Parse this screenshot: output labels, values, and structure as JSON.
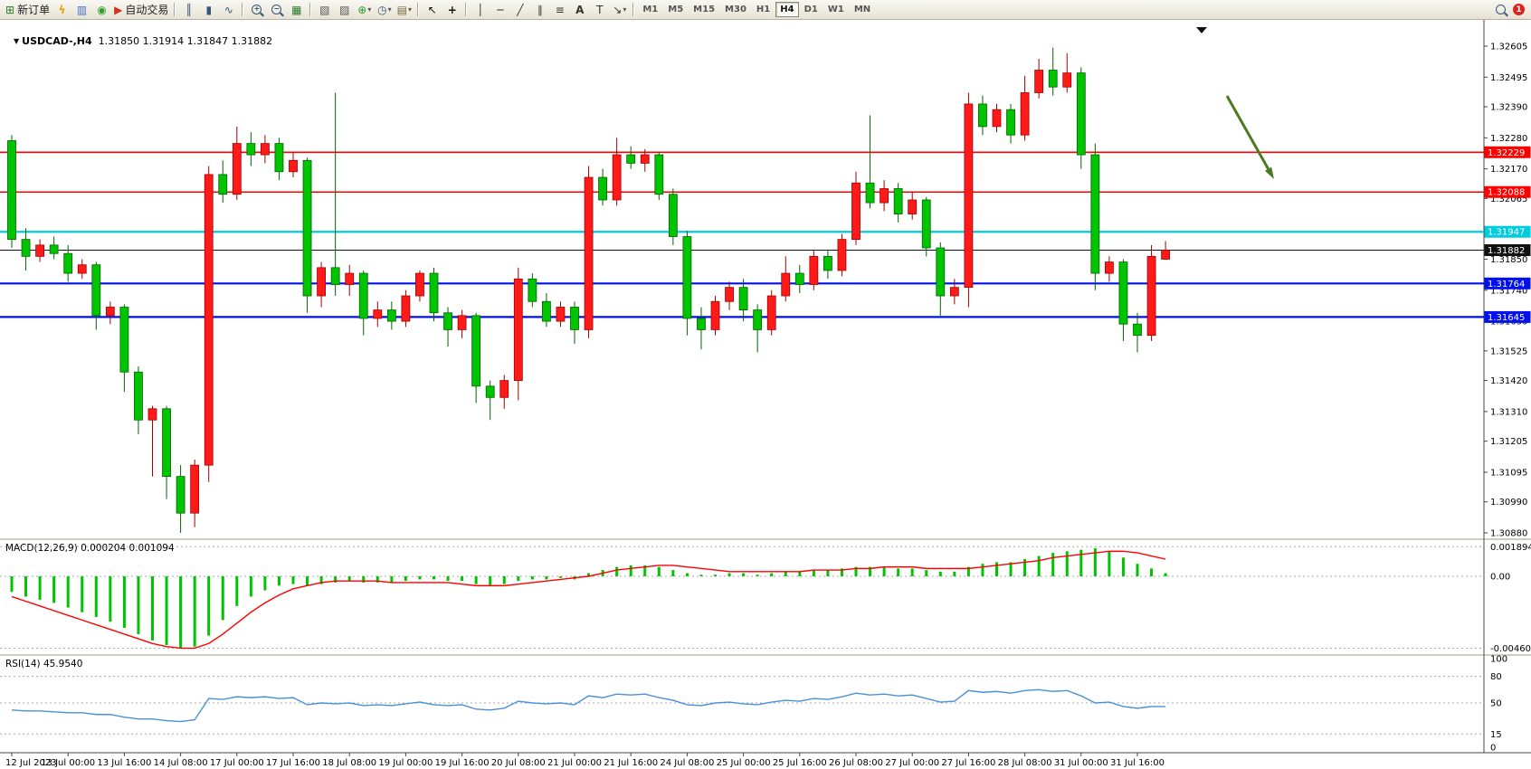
{
  "toolbar": {
    "new_order_label": "新订单",
    "auto_trading_label": "自动交易",
    "timeframes": [
      "M1",
      "M5",
      "M15",
      "M30",
      "H1",
      "H4",
      "D1",
      "W1",
      "MN"
    ],
    "active_timeframe": "H4",
    "notification_count": "1"
  },
  "icons": {
    "new_order": "⊞",
    "lightning": "ϟ",
    "profile": "▥",
    "sound": "◉",
    "auto_trading": "▶",
    "bar_chart": "║",
    "candle_chart": "▮",
    "line_chart": "∿",
    "tile_windows": "▦",
    "cascade_windows": "▧",
    "arrange_windows": "▨",
    "add_indicator": "⊕",
    "clock": "◷",
    "template": "▤",
    "cursor": "↖",
    "crosshair": "+",
    "vline": "│",
    "hline": "─",
    "trendline": "╱",
    "channel": "∥",
    "fibonacci": "≡",
    "text_tool": "A",
    "label_tool": "T",
    "arrow_tool": "↘",
    "dropdown": "▾",
    "expand_triangle": "▼",
    "zoom_in_sign": "+",
    "zoom_out_sign": "−"
  },
  "header": {
    "symbol_label": "USDCAD-,H4",
    "quote_line": "1.31850 1.31914 1.31847 1.31882"
  },
  "macd_header": "MACD(12,26,9) 0.000204 0.001094",
  "rsi_header": "RSI(14) 45.9540",
  "chart_data": {
    "type": "candlestick",
    "symbol": "USDCAD-",
    "timeframe": "H4",
    "current_ohlc": {
      "open": 1.3185,
      "high": 1.31914,
      "low": 1.31847,
      "close": 1.31882
    },
    "bull_color": "#ff1a1a",
    "bear_color": "#00c400",
    "price_axis": {
      "max": 1.32605,
      "min": 1.3088,
      "ticks": [
        1.32605,
        1.32495,
        1.3239,
        1.3228,
        1.3217,
        1.32065,
        1.31955,
        1.3185,
        1.3174,
        1.3163,
        1.31525,
        1.3142,
        1.3131,
        1.31205,
        1.31095,
        1.3099,
        1.3088
      ]
    },
    "horizontal_lines": [
      {
        "price": 1.32229,
        "color": "#ff0000",
        "width": 1.6
      },
      {
        "price": 1.32088,
        "color": "#ff0000",
        "width": 1.6
      },
      {
        "price": 1.31947,
        "color": "#00ccdd",
        "width": 2.2
      },
      {
        "price": 1.31764,
        "color": "#0010ee",
        "width": 2.2
      },
      {
        "price": 1.31645,
        "color": "#0010ee",
        "width": 2.2
      }
    ],
    "current_price": {
      "value": 1.31882,
      "color": "#111111"
    },
    "annotation_arrow": {
      "color": "#4c7a1f"
    },
    "candles": [
      [
        1.3227,
        1.3229,
        1.3189,
        1.3192
      ],
      [
        1.3192,
        1.3196,
        1.3181,
        1.3186
      ],
      [
        1.3186,
        1.3192,
        1.3184,
        1.319
      ],
      [
        1.319,
        1.3193,
        1.3185,
        1.3187
      ],
      [
        1.3187,
        1.319,
        1.3177,
        1.318
      ],
      [
        1.318,
        1.3185,
        1.3178,
        1.3183
      ],
      [
        1.3183,
        1.3184,
        1.316,
        1.3165
      ],
      [
        1.3165,
        1.317,
        1.3162,
        1.3168
      ],
      [
        1.3168,
        1.3169,
        1.3138,
        1.3145
      ],
      [
        1.3145,
        1.3147,
        1.3123,
        1.3128
      ],
      [
        1.3128,
        1.3133,
        1.3108,
        1.3132
      ],
      [
        1.3132,
        1.3133,
        1.31,
        1.3108
      ],
      [
        1.3108,
        1.3112,
        1.3088,
        1.3095
      ],
      [
        1.3095,
        1.3114,
        1.309,
        1.3112
      ],
      [
        1.3112,
        1.3218,
        1.3106,
        1.3215
      ],
      [
        1.3215,
        1.322,
        1.3205,
        1.3208
      ],
      [
        1.3208,
        1.3232,
        1.3206,
        1.3226
      ],
      [
        1.3226,
        1.323,
        1.3218,
        1.3222
      ],
      [
        1.3222,
        1.3229,
        1.3219,
        1.3226
      ],
      [
        1.3226,
        1.3228,
        1.3213,
        1.3216
      ],
      [
        1.3216,
        1.3223,
        1.3214,
        1.322
      ],
      [
        1.322,
        1.3221,
        1.3166,
        1.3172
      ],
      [
        1.3172,
        1.3184,
        1.3168,
        1.3182
      ],
      [
        1.3182,
        1.3244,
        1.3172,
        1.3176
      ],
      [
        1.3176,
        1.3183,
        1.3172,
        1.318
      ],
      [
        1.318,
        1.3181,
        1.3158,
        1.3164
      ],
      [
        1.3164,
        1.317,
        1.3161,
        1.3167
      ],
      [
        1.3167,
        1.317,
        1.316,
        1.3163
      ],
      [
        1.3163,
        1.3174,
        1.3161,
        1.3172
      ],
      [
        1.3172,
        1.3181,
        1.317,
        1.318
      ],
      [
        1.318,
        1.3182,
        1.3163,
        1.3166
      ],
      [
        1.3166,
        1.3168,
        1.3154,
        1.316
      ],
      [
        1.316,
        1.3167,
        1.3157,
        1.3165
      ],
      [
        1.3165,
        1.3166,
        1.3134,
        1.314
      ],
      [
        1.314,
        1.3142,
        1.3128,
        1.3136
      ],
      [
        1.3136,
        1.3144,
        1.3132,
        1.3142
      ],
      [
        1.3142,
        1.3182,
        1.3135,
        1.3178
      ],
      [
        1.3178,
        1.318,
        1.3168,
        1.317
      ],
      [
        1.317,
        1.3173,
        1.3161,
        1.3163
      ],
      [
        1.3163,
        1.317,
        1.3161,
        1.3168
      ],
      [
        1.3168,
        1.317,
        1.3155,
        1.316
      ],
      [
        1.316,
        1.3218,
        1.3157,
        1.3214
      ],
      [
        1.3214,
        1.3217,
        1.3204,
        1.3206
      ],
      [
        1.3206,
        1.3228,
        1.3204,
        1.3222
      ],
      [
        1.3222,
        1.3225,
        1.3217,
        1.3219
      ],
      [
        1.3219,
        1.3224,
        1.3216,
        1.3222
      ],
      [
        1.3222,
        1.3223,
        1.3206,
        1.3208
      ],
      [
        1.3208,
        1.321,
        1.319,
        1.3193
      ],
      [
        1.3193,
        1.3195,
        1.3158,
        1.3164
      ],
      [
        1.3164,
        1.3168,
        1.3153,
        1.316
      ],
      [
        1.316,
        1.3172,
        1.3158,
        1.317
      ],
      [
        1.317,
        1.3177,
        1.3167,
        1.3175
      ],
      [
        1.3175,
        1.3178,
        1.3163,
        1.3167
      ],
      [
        1.3167,
        1.3169,
        1.3152,
        1.316
      ],
      [
        1.316,
        1.3174,
        1.3158,
        1.3172
      ],
      [
        1.3172,
        1.3186,
        1.317,
        1.318
      ],
      [
        1.318,
        1.3183,
        1.3173,
        1.3176
      ],
      [
        1.3176,
        1.3188,
        1.3174,
        1.3186
      ],
      [
        1.3186,
        1.3188,
        1.3178,
        1.3181
      ],
      [
        1.3181,
        1.3194,
        1.3179,
        1.3192
      ],
      [
        1.3192,
        1.3216,
        1.319,
        1.3212
      ],
      [
        1.3212,
        1.3236,
        1.3203,
        1.3205
      ],
      [
        1.3205,
        1.3213,
        1.3202,
        1.321
      ],
      [
        1.321,
        1.3212,
        1.3198,
        1.3201
      ],
      [
        1.3201,
        1.3209,
        1.3199,
        1.3206
      ],
      [
        1.3206,
        1.3207,
        1.3186,
        1.3189
      ],
      [
        1.3189,
        1.3191,
        1.3165,
        1.3172
      ],
      [
        1.3172,
        1.3178,
        1.3169,
        1.3175
      ],
      [
        1.3175,
        1.3244,
        1.3168,
        1.324
      ],
      [
        1.324,
        1.3243,
        1.3229,
        1.3232
      ],
      [
        1.3232,
        1.324,
        1.323,
        1.3238
      ],
      [
        1.3238,
        1.324,
        1.3226,
        1.3229
      ],
      [
        1.3229,
        1.325,
        1.3227,
        1.3244
      ],
      [
        1.3244,
        1.3256,
        1.3242,
        1.3252
      ],
      [
        1.3252,
        1.326,
        1.3243,
        1.3246
      ],
      [
        1.3246,
        1.3258,
        1.3244,
        1.3251
      ],
      [
        1.3251,
        1.3253,
        1.3217,
        1.3222
      ],
      [
        1.3222,
        1.3226,
        1.3174,
        1.318
      ],
      [
        1.318,
        1.3186,
        1.3177,
        1.3184
      ],
      [
        1.3184,
        1.3185,
        1.3156,
        1.3162
      ],
      [
        1.3162,
        1.3166,
        1.3152,
        1.3158
      ],
      [
        1.3158,
        1.319,
        1.3156,
        1.3186
      ],
      [
        1.3185,
        1.31914,
        1.31847,
        1.31882
      ]
    ],
    "time_labels": [
      "12 Jul 2023",
      "13 Jul 00:00",
      "13 Jul 16:00",
      "14 Jul 08:00",
      "17 Jul 00:00",
      "17 Jul 16:00",
      "18 Jul 08:00",
      "19 Jul 00:00",
      "19 Jul 16:00",
      "20 Jul 08:00",
      "21 Jul 00:00",
      "21 Jul 16:00",
      "24 Jul 08:00",
      "25 Jul 00:00",
      "25 Jul 16:00",
      "26 Jul 08:00",
      "27 Jul 00:00",
      "27 Jul 16:00",
      "28 Jul 08:00",
      "31 Jul 00:00",
      "31 Jul 16:00"
    ],
    "macd": {
      "name": "MACD(12,26,9)",
      "main_value": "0.000204",
      "signal_value": "0.001094",
      "axis_labels": [
        "0.001894",
        "0.00",
        "-0.004603"
      ],
      "axis_values": [
        0.001894,
        0,
        -0.004603
      ],
      "hist_color": "#00c400",
      "signal_color": "#ff0000",
      "hist": [
        -0.001,
        -0.0013,
        -0.0015,
        -0.0017,
        -0.002,
        -0.0023,
        -0.0026,
        -0.0029,
        -0.0033,
        -0.0037,
        -0.0041,
        -0.0044,
        -0.0046,
        -0.0045,
        -0.0038,
        -0.0028,
        -0.0019,
        -0.0013,
        -0.0009,
        -0.0006,
        -0.0005,
        -0.0006,
        -0.0005,
        -0.0004,
        -0.0003,
        -0.0004,
        -0.0004,
        -0.0004,
        -0.0003,
        -0.0002,
        -0.0002,
        -0.0003,
        -0.0003,
        -0.0005,
        -0.0006,
        -0.0005,
        -0.0003,
        -0.0002,
        -0.0002,
        -0.0001,
        -0.0002,
        0.0002,
        0.0004,
        0.0006,
        0.0007,
        0.0007,
        0.0006,
        0.0004,
        0.0002,
        0.0001,
        0.0001,
        0.0002,
        0.0002,
        0.0001,
        0.0002,
        0.0003,
        0.0003,
        0.0004,
        0.0004,
        0.0005,
        0.0006,
        0.0006,
        0.0006,
        0.0005,
        0.0005,
        0.0004,
        0.0003,
        0.0003,
        0.0006,
        0.0008,
        0.0009,
        0.0009,
        0.0011,
        0.0013,
        0.0015,
        0.0016,
        0.0017,
        0.0018,
        0.0016,
        0.0012,
        0.0008,
        0.0005,
        0.0002
      ],
      "signal": [
        -0.0013,
        -0.0016,
        -0.0019,
        -0.0022,
        -0.0025,
        -0.0028,
        -0.0031,
        -0.0034,
        -0.0037,
        -0.004,
        -0.0043,
        -0.0045,
        -0.0046,
        -0.0046,
        -0.0043,
        -0.0037,
        -0.003,
        -0.0023,
        -0.0017,
        -0.0012,
        -0.0008,
        -0.0006,
        -0.0004,
        -0.0003,
        -0.0003,
        -0.0003,
        -0.0003,
        -0.0004,
        -0.0004,
        -0.0004,
        -0.0004,
        -0.0004,
        -0.0005,
        -0.0006,
        -0.0006,
        -0.0006,
        -0.0005,
        -0.0004,
        -0.0003,
        -0.0002,
        -0.0001,
        0.0,
        0.0002,
        0.0004,
        0.0005,
        0.0006,
        0.0007,
        0.0007,
        0.0006,
        0.0005,
        0.0004,
        0.0003,
        0.0003,
        0.0003,
        0.0003,
        0.0003,
        0.0003,
        0.0004,
        0.0004,
        0.0004,
        0.0005,
        0.0005,
        0.0006,
        0.0006,
        0.0006,
        0.0005,
        0.0005,
        0.0005,
        0.0005,
        0.0006,
        0.0007,
        0.0008,
        0.0009,
        0.001,
        0.0012,
        0.0013,
        0.0014,
        0.0015,
        0.0016,
        0.0016,
        0.0015,
        0.0013,
        0.0011
      ]
    },
    "rsi": {
      "name": "RSI(14)",
      "value": "45.9540",
      "line_color": "#4a90d9",
      "levels": [
        100,
        80,
        50,
        15,
        0
      ],
      "series": [
        42,
        41,
        41,
        40,
        39,
        39,
        37,
        37,
        34,
        32,
        32,
        30,
        29,
        31,
        55,
        54,
        57,
        56,
        57,
        55,
        56,
        48,
        50,
        49,
        50,
        47,
        48,
        47,
        49,
        51,
        48,
        47,
        48,
        43,
        42,
        44,
        52,
        50,
        49,
        50,
        48,
        58,
        56,
        60,
        59,
        60,
        56,
        53,
        48,
        47,
        50,
        51,
        49,
        48,
        51,
        53,
        52,
        55,
        54,
        57,
        61,
        59,
        60,
        58,
        59,
        55,
        51,
        52,
        64,
        62,
        63,
        61,
        64,
        65,
        63,
        64,
        58,
        50,
        51,
        46,
        44,
        46,
        45.95
      ]
    }
  }
}
